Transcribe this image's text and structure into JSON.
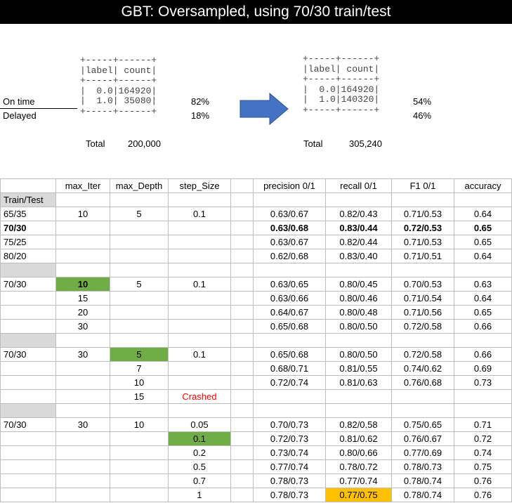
{
  "title": "GBT: Oversampled, using 70/30 train/test",
  "left_block": {
    "ascii_lines": [
      "+-----+------+",
      "|label| count|",
      "+-----+------+",
      "|  0.0|164920|",
      "|  1.0| 35080|",
      "+-----+------+"
    ],
    "row_labels": [
      "On time",
      "Delayed"
    ],
    "percents": [
      "82%",
      "18%"
    ],
    "total_label": "Total",
    "total_value": "200,000"
  },
  "right_block": {
    "ascii_lines": [
      "+-----+------+",
      "|label| count|",
      "+-----+------+",
      "|  0.0|164920|",
      "|  1.0|140320|",
      "+-----+------+"
    ],
    "percents": [
      "54%",
      "46%"
    ],
    "total_label": "Total",
    "total_value": "305,240"
  },
  "arrow_color": "#4472c4",
  "colors": {
    "highlight_green": "#70ad47",
    "highlight_orange": "#ffc000",
    "crashed_red": "#ff0000"
  },
  "table": {
    "headers": [
      "",
      "max_Iter",
      "max_Depth",
      "step_Size",
      "",
      "precision 0/1",
      "recall 0/1",
      "F1 0/1",
      "accuracy"
    ],
    "rows": [
      [
        "Train/Test",
        "",
        "",
        "",
        "",
        "",
        "",
        "",
        ""
      ],
      [
        "65/35",
        "10",
        "5",
        "0.1",
        "",
        "0.63/0.67",
        "0.82/0.43",
        "0.71/0.53",
        "0.64"
      ],
      [
        "70/30",
        "",
        "",
        "",
        "",
        "0.63/0.68",
        "0.83/0.44",
        "0.72/0.53",
        "0.65"
      ],
      [
        "75/25",
        "",
        "",
        "",
        "",
        "0.63/0.67",
        "0.82/0.44",
        "0.71/0.53",
        "0.65"
      ],
      [
        "80/20",
        "",
        "",
        "",
        "",
        "0.62/0.68",
        "0.83/0.40",
        "0.71/0.51",
        "0.64"
      ],
      [
        "",
        "",
        "",
        "",
        "",
        "",
        "",
        "",
        ""
      ],
      [
        "70/30",
        "10",
        "5",
        "0.1",
        "",
        "0.63/0.65",
        "0.80/0.45",
        "0.70/0.53",
        "0.63"
      ],
      [
        "",
        "15",
        "",
        "",
        "",
        "0.63/0.66",
        "0.80/0.46",
        "0.71/0.54",
        "0.64"
      ],
      [
        "",
        "20",
        "",
        "",
        "",
        "0.64/0.67",
        "0.80/0.48",
        "0.71/0.56",
        "0.65"
      ],
      [
        "",
        "30",
        "",
        "",
        "",
        "0.65/0.68",
        "0.80/0.50",
        "0.72/0.58",
        "0.66"
      ],
      [
        "",
        "",
        "",
        "",
        "",
        "",
        "",
        "",
        ""
      ],
      [
        "70/30",
        "30",
        "5",
        "0.1",
        "",
        "0.65/0.68",
        "0.80/0.50",
        "0.72/0.58",
        "0.66"
      ],
      [
        "",
        "",
        "7",
        "",
        "",
        "0.68/0.71",
        "0.81/0.55",
        "0.74/0.62",
        "0.69"
      ],
      [
        "",
        "",
        "10",
        "",
        "",
        "0.72/0.74",
        "0.81/0.63",
        "0.76/0.68",
        "0.73"
      ],
      [
        "",
        "",
        "15",
        "Crashed",
        "",
        "",
        "",
        "",
        ""
      ],
      [
        "",
        "",
        "",
        "",
        "",
        "",
        "",
        "",
        ""
      ],
      [
        "70/30",
        "30",
        "10",
        "0.05",
        "",
        "0.70/0.73",
        "0.82/0.58",
        "0.75/0.65",
        "0.71"
      ],
      [
        "",
        "",
        "",
        "0.1",
        "",
        "0.72/0.73",
        "0.81/0.62",
        "0.76/0.67",
        "0.72"
      ],
      [
        "",
        "",
        "",
        "0.2",
        "",
        "0.73/0.74",
        "0.80/0.66",
        "0.77/0.69",
        "0.74"
      ],
      [
        "",
        "",
        "",
        "0.5",
        "",
        "0.77/0.74",
        "0.78/0.72",
        "0.78/0.73",
        "0.75"
      ],
      [
        "",
        "",
        "",
        "0.7",
        "",
        "0.78/0.73",
        "0.77/0.74",
        "0.78/0.74",
        "0.76"
      ],
      [
        "",
        "",
        "",
        "1",
        "",
        "0.78/0.73",
        "0.77/0.75",
        "0.78/0.74",
        "0.76"
      ]
    ]
  }
}
